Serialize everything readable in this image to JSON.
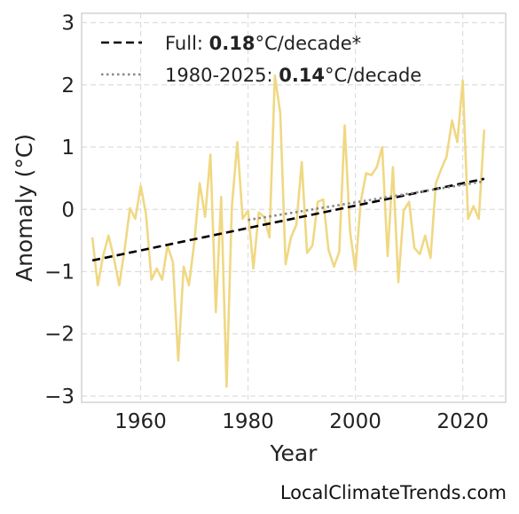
{
  "chart_data": {
    "type": "line",
    "xlabel": "Year",
    "ylabel": "Anomaly (°C)",
    "xlim": [
      1949,
      2028
    ],
    "ylim": [
      -3.1,
      3.15
    ],
    "xticks": [
      1960,
      1980,
      2000,
      2020
    ],
    "yticks": [
      -3,
      -2,
      -1,
      0,
      1,
      2,
      3
    ],
    "grid": true,
    "legend_position": "top-left",
    "series": [
      {
        "role": "data",
        "color": "#f0d883",
        "x": [
          1951,
          1952,
          1953,
          1954,
          1955,
          1956,
          1957,
          1958,
          1959,
          1960,
          1961,
          1962,
          1963,
          1964,
          1965,
          1966,
          1967,
          1968,
          1969,
          1970,
          1971,
          1972,
          1973,
          1974,
          1975,
          1976,
          1977,
          1978,
          1979,
          1980,
          1981,
          1982,
          1983,
          1984,
          1985,
          1986,
          1987,
          1988,
          1989,
          1990,
          1991,
          1992,
          1993,
          1994,
          1995,
          1996,
          1997,
          1998,
          1999,
          2000,
          2001,
          2002,
          2003,
          2004,
          2005,
          2006,
          2007,
          2008,
          2009,
          2010,
          2011,
          2012,
          2013,
          2014,
          2015,
          2016,
          2017,
          2018,
          2019,
          2020,
          2021,
          2022,
          2023,
          2024
        ],
        "values": [
          -0.45,
          -1.22,
          -0.75,
          -0.42,
          -0.78,
          -1.22,
          -0.65,
          0.02,
          -0.15,
          0.38,
          -0.08,
          -1.13,
          -0.95,
          -1.13,
          -0.58,
          -0.85,
          -2.43,
          -0.92,
          -1.22,
          -0.52,
          0.42,
          -0.12,
          0.88,
          -1.65,
          0.2,
          -2.85,
          0.05,
          1.08,
          -0.15,
          -0.02,
          -0.95,
          -0.05,
          -0.12,
          -0.45,
          2.15,
          1.55,
          -0.88,
          -0.45,
          -0.25,
          0.76,
          -0.7,
          -0.58,
          0.12,
          0.16,
          -0.65,
          -0.92,
          -0.68,
          1.35,
          -0.35,
          -0.98,
          0.12,
          0.58,
          0.55,
          0.68,
          1.0,
          -0.75,
          0.68,
          -1.17,
          -0.02,
          0.12,
          -0.62,
          -0.72,
          -0.42,
          -0.78,
          0.42,
          0.65,
          0.85,
          1.43,
          1.08,
          2.07,
          -0.15,
          0.05,
          -0.15,
          1.28
        ]
      },
      {
        "role": "trend-full",
        "color": "#000000",
        "style": "dashed",
        "x": [
          1951,
          2024
        ],
        "values": [
          -0.82,
          0.49
        ]
      },
      {
        "role": "trend-recent",
        "color": "#888888",
        "style": "dotted",
        "x": [
          1980,
          2024
        ],
        "values": [
          -0.17,
          0.45
        ]
      }
    ],
    "legend": [
      {
        "prefix": "Full: ",
        "value": "0.18",
        "suffix": "°C/decade*"
      },
      {
        "prefix": "1980-2025: ",
        "value": "0.14",
        "suffix": "°C/decade"
      }
    ]
  },
  "credit": "LocalClimateTrends.com"
}
